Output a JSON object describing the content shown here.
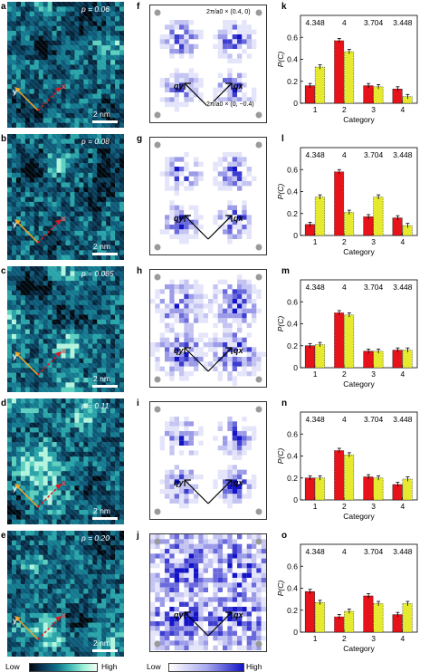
{
  "colors": {
    "red": "#e8121b",
    "yellow": "#e6ea2e",
    "stm_dark": "#020810",
    "stm_mid": "#0f6d86",
    "stm_high": "#9af0d8",
    "ft_high": "#1414c8"
  },
  "stm_panels": [
    {
      "letter": "a",
      "p_label": "p = 0.06",
      "scale": "2 nm",
      "x_label": "x",
      "y_label": "y"
    },
    {
      "letter": "b",
      "p_label": "p = 0.08",
      "scale": "2 nm",
      "x_label": "x",
      "y_label": "y"
    },
    {
      "letter": "c",
      "p_label": "p = 0.085",
      "scale": "2 nm",
      "x_label": "x",
      "y_label": "y"
    },
    {
      "letter": "d",
      "p_label": "p = 0.11",
      "scale": "2 nm",
      "x_label": "x",
      "y_label": "y"
    },
    {
      "letter": "e",
      "p_label": "p = 0.20",
      "scale": "2 nm",
      "x_label": "x",
      "y_label": "y"
    }
  ],
  "ft_panels": [
    {
      "letter": "f",
      "qx": "qx",
      "qy": "qy",
      "ann_top": "2π/a0 × (0.4, 0)",
      "ann_bottom": "2π/a0 × (0, −0.4)"
    },
    {
      "letter": "g",
      "qx": "qx",
      "qy": "qy"
    },
    {
      "letter": "h",
      "qx": "qx",
      "qy": "qy"
    },
    {
      "letter": "i",
      "qx": "qx",
      "qy": "qy"
    },
    {
      "letter": "j",
      "qx": "qx",
      "qy": "qy"
    }
  ],
  "colorbars": {
    "stm": {
      "low": "Low",
      "high": "High"
    },
    "ft": {
      "low": "Low",
      "high": "High"
    }
  },
  "chart_data": [
    {
      "letter": "k",
      "type": "bar",
      "categories": [
        "1",
        "2",
        "3",
        "4"
      ],
      "top_labels": [
        "4.348",
        "4",
        "3.704",
        "3.448"
      ],
      "xlabel": "Category",
      "ylabel": "P(C)",
      "ylim": [
        0,
        0.8
      ],
      "yticks": [
        "0",
        "0.2",
        "0.4",
        "0.6"
      ],
      "series": [
        {
          "values": [
            0.16,
            0.57,
            0.16,
            0.13
          ]
        },
        {
          "values": [
            0.33,
            0.47,
            0.15,
            0.06
          ]
        }
      ]
    },
    {
      "letter": "l",
      "type": "bar",
      "categories": [
        "1",
        "2",
        "3",
        "4"
      ],
      "top_labels": [
        "4.348",
        "4",
        "3.704",
        "3.448"
      ],
      "xlabel": "Category",
      "ylabel": "P(C)",
      "ylim": [
        0,
        0.8
      ],
      "yticks": [
        "0",
        "0.2",
        "0.4",
        "0.6"
      ],
      "series": [
        {
          "values": [
            0.1,
            0.58,
            0.17,
            0.16
          ]
        },
        {
          "values": [
            0.35,
            0.21,
            0.35,
            0.09
          ]
        }
      ]
    },
    {
      "letter": "m",
      "type": "bar",
      "categories": [
        "1",
        "2",
        "3",
        "4"
      ],
      "top_labels": [
        "4.348",
        "4",
        "3.704",
        "3.448"
      ],
      "xlabel": "Category",
      "ylabel": "P(C)",
      "ylim": [
        0,
        0.8
      ],
      "yticks": [
        "0",
        "0.2",
        "0.4",
        "0.6"
      ],
      "series": [
        {
          "values": [
            0.2,
            0.5,
            0.15,
            0.16
          ]
        },
        {
          "values": [
            0.21,
            0.48,
            0.15,
            0.16
          ]
        }
      ]
    },
    {
      "letter": "n",
      "type": "bar",
      "categories": [
        "1",
        "2",
        "3",
        "4"
      ],
      "top_labels": [
        "4.348",
        "4",
        "3.704",
        "3.448"
      ],
      "xlabel": "Category",
      "ylabel": "P(C)",
      "ylim": [
        0,
        0.8
      ],
      "yticks": [
        "0",
        "0.2",
        "0.4",
        "0.6"
      ],
      "series": [
        {
          "values": [
            0.2,
            0.45,
            0.21,
            0.14
          ]
        },
        {
          "values": [
            0.2,
            0.41,
            0.2,
            0.19
          ]
        }
      ]
    },
    {
      "letter": "o",
      "type": "bar",
      "categories": [
        "1",
        "2",
        "3",
        "4"
      ],
      "top_labels": [
        "4.348",
        "4",
        "3.704",
        "3.448"
      ],
      "xlabel": "Category",
      "ylabel": "P(C)",
      "ylim": [
        0,
        0.8
      ],
      "yticks": [
        "0",
        "0.2",
        "0.4",
        "0.6"
      ],
      "series": [
        {
          "values": [
            0.37,
            0.14,
            0.33,
            0.16
          ]
        },
        {
          "values": [
            0.27,
            0.19,
            0.26,
            0.26
          ]
        }
      ]
    }
  ]
}
